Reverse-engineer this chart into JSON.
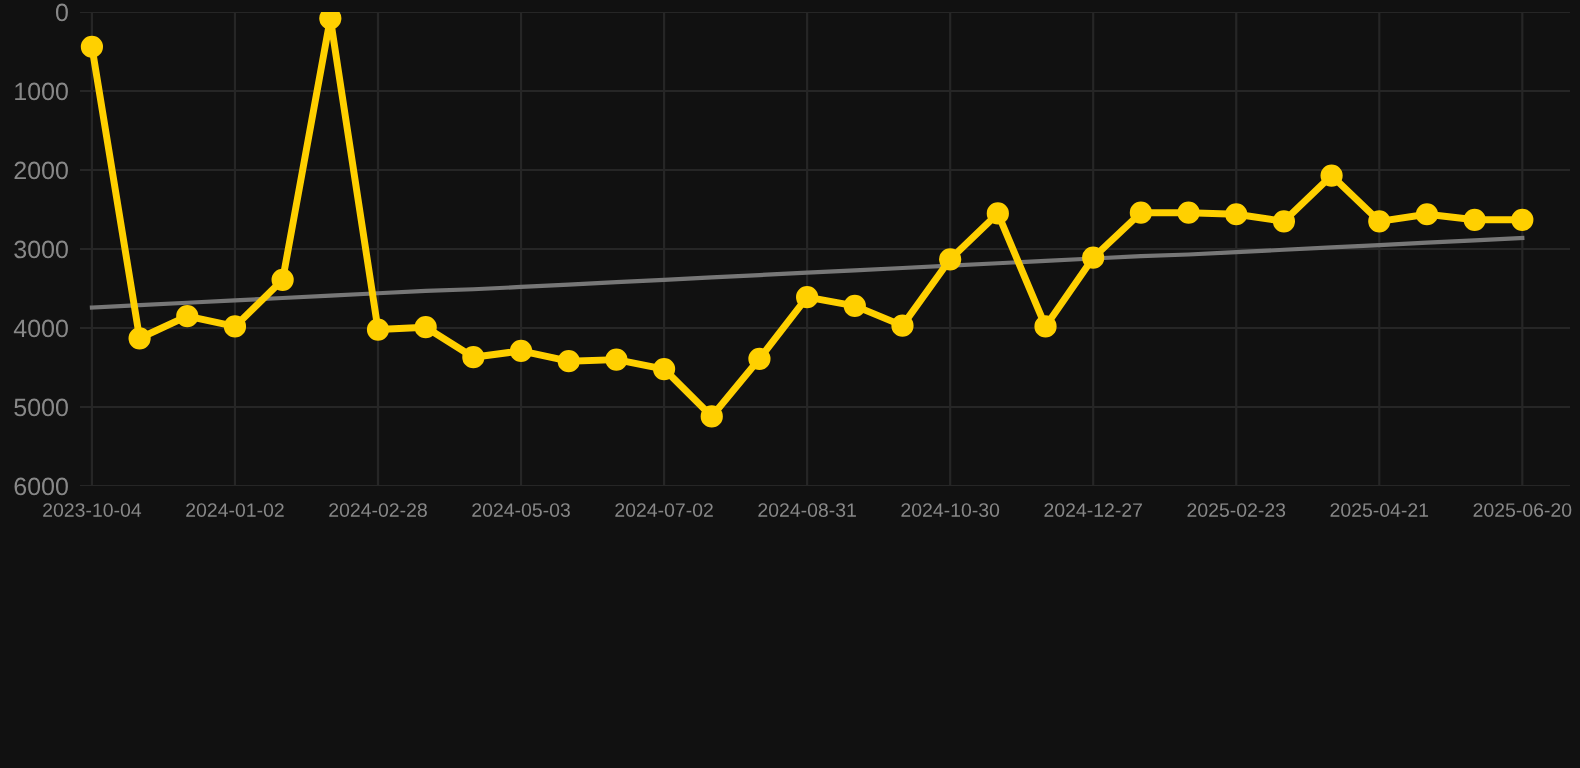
{
  "chart_data": {
    "type": "line",
    "categories": [
      "2023-10-04",
      null,
      null,
      "2024-01-02",
      null,
      null,
      "2024-02-28",
      null,
      null,
      "2024-05-03",
      null,
      null,
      "2024-07-02",
      null,
      null,
      "2024-08-31",
      null,
      null,
      "2024-10-30",
      null,
      null,
      "2024-12-27",
      null,
      null,
      "2025-02-23",
      null,
      null,
      "2025-04-21",
      null,
      null,
      "2025-06-20"
    ],
    "series": [
      {
        "color": "#ffd000",
        "marker": "circle",
        "values": [
          440,
          4130,
          3850,
          3980,
          3390,
          80,
          4020,
          3990,
          4370,
          4290,
          4420,
          4400,
          4520,
          5120,
          4390,
          3610,
          3720,
          3970,
          3130,
          2550,
          3980,
          3110,
          2540,
          2540,
          2560,
          2650,
          2070,
          2650,
          2560,
          2630,
          2630
        ]
      },
      {
        "type": "line",
        "color": "#777777",
        "marker": "none",
        "values": [
          3740,
          3710,
          3680,
          3650,
          3620,
          3590,
          3560,
          3530,
          3510,
          3480,
          3450,
          3420,
          3390,
          3360,
          3330,
          3300,
          3270,
          3240,
          3210,
          3180,
          3150,
          3120,
          3090,
          3070,
          3040,
          3010,
          2980,
          2950,
          2920,
          2890,
          2860
        ]
      }
    ],
    "ylim": [
      6000,
      0
    ],
    "yticks": [
      0,
      1000,
      2000,
      3000,
      4000,
      5000,
      6000
    ],
    "grid": true
  }
}
